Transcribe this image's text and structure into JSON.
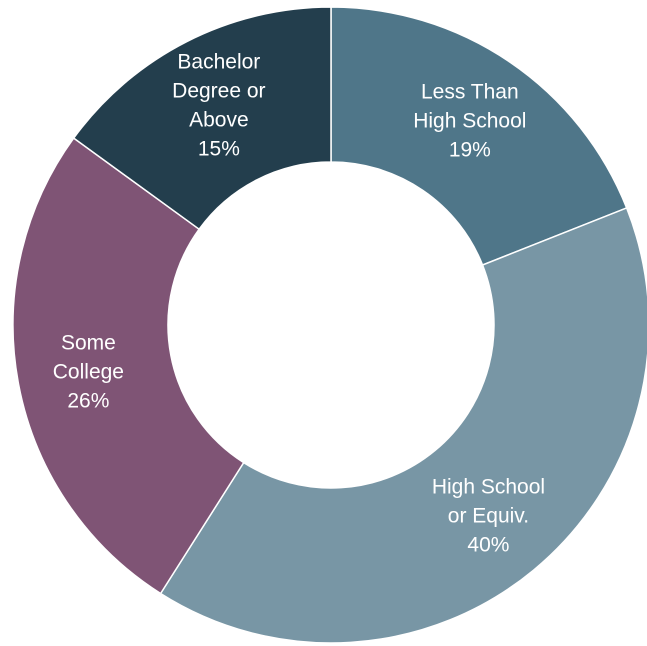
{
  "chart_data": {
    "type": "pie",
    "variant": "donut",
    "title": "",
    "legend": "none",
    "slices": [
      {
        "label_lines": [
          "Less Than",
          "High School"
        ],
        "value": 19,
        "value_label": "19%",
        "color": "#4f7689"
      },
      {
        "label_lines": [
          "High School",
          "or Equiv."
        ],
        "value": 40,
        "value_label": "40%",
        "color": "#7896a5"
      },
      {
        "label_lines": [
          "Some",
          "College"
        ],
        "value": 26,
        "value_label": "26%",
        "color": "#7f5475"
      },
      {
        "label_lines": [
          "Bachelor",
          "Degree or",
          "Above"
        ],
        "value": 15,
        "value_label": "15%",
        "color": "#233e4d"
      }
    ]
  }
}
